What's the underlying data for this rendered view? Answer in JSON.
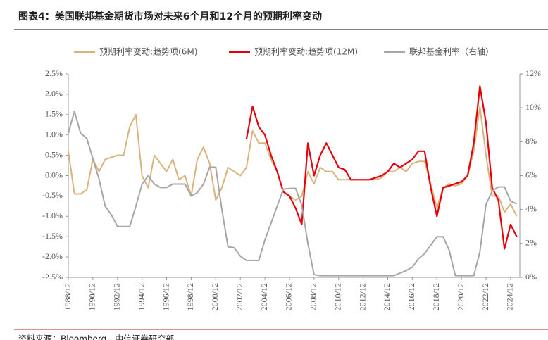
{
  "chart_data": {
    "type": "line",
    "title": "图表4：美国联邦基金期货市场对未来6个月和12个月的预期利率变动",
    "source": "资料来源：Bloomberg，中信证券研究部",
    "x": [
      "1988/12",
      "1989/06",
      "1989/12",
      "1990/06",
      "1990/12",
      "1991/06",
      "1991/12",
      "1992/06",
      "1992/12",
      "1993/06",
      "1993/12",
      "1994/06",
      "1994/12",
      "1995/06",
      "1995/12",
      "1996/06",
      "1996/12",
      "1997/06",
      "1997/12",
      "1998/06",
      "1998/12",
      "1999/06",
      "1999/12",
      "2000/06",
      "2000/12",
      "2001/06",
      "2001/12",
      "2002/06",
      "2002/12",
      "2003/06",
      "2003/12",
      "2004/06",
      "2004/12",
      "2005/06",
      "2005/12",
      "2006/06",
      "2006/12",
      "2007/06",
      "2007/12",
      "2008/06",
      "2008/12",
      "2009/06",
      "2009/12",
      "2010/06",
      "2010/12",
      "2011/06",
      "2011/12",
      "2012/06",
      "2012/12",
      "2013/06",
      "2013/12",
      "2014/06",
      "2014/12",
      "2015/06",
      "2015/12",
      "2016/06",
      "2016/12",
      "2017/06",
      "2017/12",
      "2018/06",
      "2018/12",
      "2019/06",
      "2019/12",
      "2020/06",
      "2020/12",
      "2021/06",
      "2021/12",
      "2022/06",
      "2022/12",
      "2023/06",
      "2023/12",
      "2024/06",
      "2024/12",
      "2025/06"
    ],
    "xlim": [
      "1988/12",
      "2025/09"
    ],
    "xticks": [
      "1988/12",
      "1990/12",
      "1992/12",
      "1994/12",
      "1996/12",
      "1998/12",
      "2000/12",
      "2002/12",
      "2004/12",
      "2006/12",
      "2008/12",
      "2010/12",
      "2012/12",
      "2014/12",
      "2016/12",
      "2018/12",
      "2020/12",
      "2022/12",
      "2024/12"
    ],
    "ylim": [
      -2.5,
      2.5
    ],
    "yticks": [
      {
        "value": -2.5,
        "label": "-2.5%"
      },
      {
        "value": -2.0,
        "label": "-2.0%"
      },
      {
        "value": -1.5,
        "label": "-1.5%"
      },
      {
        "value": -1.0,
        "label": "-1.0%"
      },
      {
        "value": -0.5,
        "label": "-0.5%"
      },
      {
        "value": 0,
        "label": "0.0%"
      },
      {
        "value": 0.5,
        "label": "0.5%"
      },
      {
        "value": 1.0,
        "label": "1.0%"
      },
      {
        "value": 1.5,
        "label": "1.5%"
      },
      {
        "value": 2.0,
        "label": "2.0%"
      },
      {
        "value": 2.5,
        "label": "2.5%"
      }
    ],
    "y2lim": [
      0,
      12
    ],
    "y2ticks": [
      {
        "value": 0,
        "label": "0%"
      },
      {
        "value": 2,
        "label": "2%"
      },
      {
        "value": 4,
        "label": "4%"
      },
      {
        "value": 6,
        "label": "6%"
      },
      {
        "value": 8,
        "label": "8%"
      },
      {
        "value": 10,
        "label": "10%"
      },
      {
        "value": 12,
        "label": "12%"
      }
    ],
    "series": [
      {
        "name": "预期利率变动:趋势项(6M)",
        "color": "#d9b37c",
        "values": [
          0.6,
          -0.45,
          -0.45,
          -0.35,
          0.4,
          0.1,
          0.4,
          0.45,
          0.5,
          0.5,
          1.2,
          1.5,
          0.0,
          -0.3,
          0.5,
          0.3,
          0.1,
          0.4,
          -0.1,
          0.0,
          -0.5,
          0.4,
          0.7,
          0.3,
          -0.6,
          -0.3,
          0.2,
          0.1,
          0.0,
          0.2,
          1.1,
          0.8,
          0.8,
          0.4,
          0.1,
          -0.4,
          -0.5,
          -0.6,
          -0.5,
          0.1,
          -0.2,
          0.2,
          0.1,
          0.1,
          -0.1,
          -0.1,
          -0.1,
          -0.1,
          -0.1,
          -0.1,
          -0.1,
          -0.05,
          0.1,
          0.1,
          0.2,
          0.1,
          0.3,
          0.35,
          0.35,
          -0.2,
          -0.8,
          -0.3,
          -0.2,
          -0.25,
          -0.2,
          0.0,
          0.6,
          1.7,
          0.5,
          -0.5,
          -0.5,
          -0.9,
          -0.7,
          -1.0
        ]
      },
      {
        "name": "预期利率变动:趋势项(12M)",
        "color": "#e8000b",
        "values": [
          null,
          null,
          null,
          null,
          null,
          null,
          null,
          null,
          null,
          null,
          null,
          null,
          null,
          null,
          null,
          null,
          null,
          null,
          null,
          null,
          null,
          null,
          null,
          null,
          null,
          null,
          null,
          null,
          null,
          0.9,
          1.7,
          1.2,
          1.0,
          0.5,
          0.1,
          -0.4,
          -0.5,
          -0.8,
          -1.2,
          0.8,
          0.0,
          0.5,
          0.8,
          0.5,
          0.2,
          0.15,
          -0.1,
          -0.1,
          -0.1,
          -0.1,
          -0.05,
          0.0,
          0.1,
          0.3,
          0.2,
          0.3,
          0.4,
          0.6,
          0.6,
          -0.3,
          -1.0,
          -0.3,
          -0.25,
          -0.2,
          -0.15,
          0.0,
          0.8,
          2.2,
          1.3,
          -0.3,
          -0.6,
          -1.8,
          -1.2,
          -1.5
        ]
      },
      {
        "name": "联邦基金利率（右轴）",
        "color": "#a6a6a6",
        "axis": "y2",
        "values": [
          8.5,
          9.8,
          8.5,
          8.2,
          7.0,
          5.8,
          4.2,
          3.7,
          3.0,
          3.0,
          3.0,
          4.2,
          5.5,
          6.0,
          5.5,
          5.3,
          5.3,
          5.5,
          5.5,
          5.5,
          4.8,
          5.0,
          5.5,
          6.5,
          6.5,
          4.0,
          1.8,
          1.75,
          1.25,
          1.0,
          1.0,
          1.0,
          2.2,
          3.2,
          4.2,
          5.2,
          5.25,
          5.25,
          4.25,
          2.0,
          0.16,
          0.1,
          0.1,
          0.1,
          0.1,
          0.1,
          0.1,
          0.1,
          0.1,
          0.1,
          0.1,
          0.1,
          0.1,
          0.1,
          0.25,
          0.4,
          0.6,
          1.1,
          1.4,
          1.9,
          2.4,
          2.4,
          1.6,
          0.1,
          0.1,
          0.1,
          0.1,
          1.5,
          4.3,
          5.1,
          5.33,
          5.33,
          4.5,
          4.33
        ]
      }
    ]
  }
}
